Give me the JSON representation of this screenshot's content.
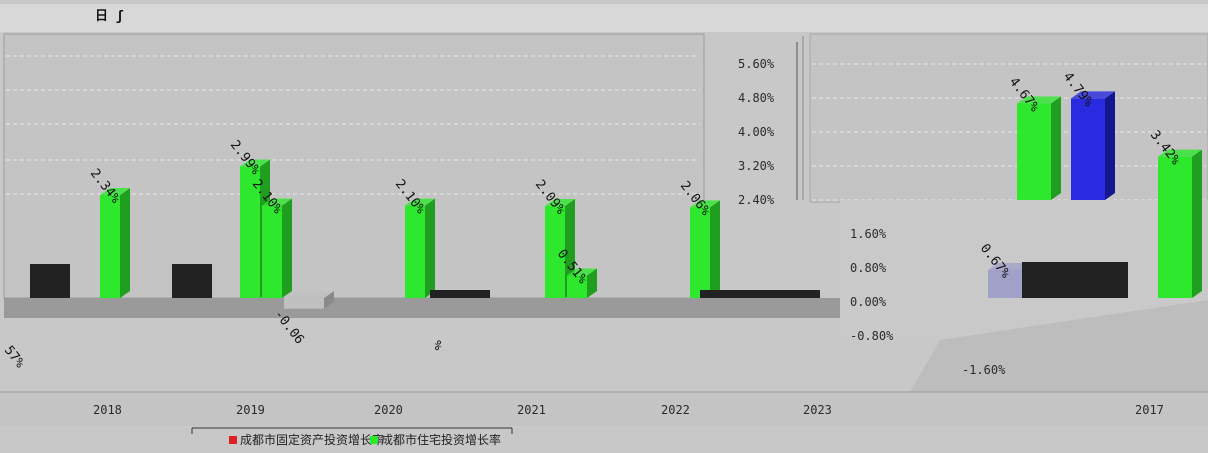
{
  "header": {
    "title_fragment": "日 ʃ"
  },
  "colors": {
    "green": "#2ee82e",
    "green_dark": "#1f9e1f",
    "blue": "#2a2ae0",
    "blue_dark": "#16168f",
    "red": "#e02020",
    "black": "#222222",
    "panel": "#c4c4c4",
    "floor": "#9a9a9a"
  },
  "chart_data": [
    {
      "type": "bar",
      "render": "3d-bar",
      "categories": [
        "2018",
        "2019",
        "2020",
        "2021",
        "2022",
        "2023"
      ],
      "series": [
        {
          "values": [
            2.34,
            2.99,
            2.1,
            2.09,
            2.06,
            null
          ],
          "labels": [
            "2.34%",
            "2.99%",
            "2.10%",
            "2.09%",
            "2.06%",
            ""
          ]
        },
        {
          "values": [
            null,
            2.1,
            null,
            0.51,
            null,
            null
          ],
          "labels": [
            "",
            "2.10%",
            "",
            "0.51%",
            "",
            ""
          ]
        },
        {
          "values": [
            null,
            -0.06,
            null,
            null,
            null,
            null
          ],
          "labels": [
            "",
            "-0.06",
            "",
            "",
            "",
            ""
          ]
        }
      ],
      "other_labels": [
        "%",
        "57%"
      ],
      "legend": {
        "position": "bottom",
        "entries": [
          "成都市固定资产投资增长率",
          "成都市住宅投资增长率"
        ]
      }
    },
    {
      "type": "bar",
      "render": "3d-bar",
      "y_ticks": [
        "5.60%",
        "4.80%",
        "4.00%",
        "3.20%",
        "2.40%",
        "1.60%",
        "0.80%",
        "0.00%",
        "-0.80%",
        "-1.60%"
      ],
      "ylim": [
        -1.6,
        5.6
      ],
      "categories": [
        "2017"
      ],
      "series": [
        {
          "values": [
            4.67
          ],
          "labels": [
            "4.67%"
          ]
        },
        {
          "values": [
            4.79
          ],
          "labels": [
            "4.79%"
          ]
        },
        {
          "values": [
            3.42
          ],
          "labels": [
            "3.42%"
          ]
        },
        {
          "values": [
            0.67
          ],
          "labels": [
            "0.67%"
          ]
        }
      ]
    }
  ]
}
